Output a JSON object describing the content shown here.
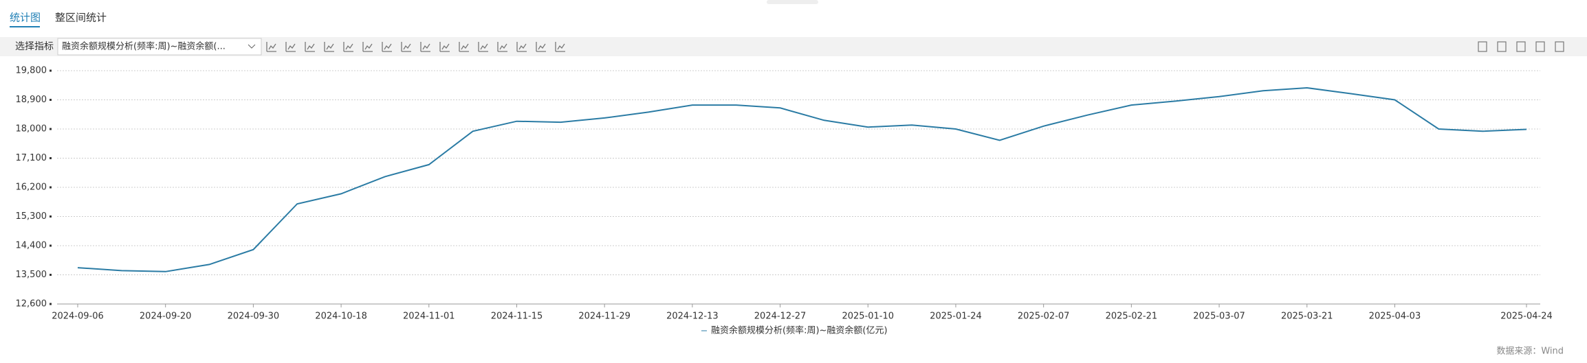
{
  "tabs": [
    "统计图",
    "整区间统计"
  ],
  "toolbar": {
    "label": "选择指标",
    "selector": "融资余额规模分析(频率:周)~融资余额(..."
  },
  "chart_data": {
    "type": "line",
    "categories": [
      "2024-09-06",
      null,
      "2024-09-20",
      null,
      "2024-09-30",
      null,
      "2024-10-18",
      null,
      "2024-11-01",
      null,
      "2024-11-15",
      null,
      "2024-11-29",
      null,
      "2024-12-13",
      null,
      "2024-12-27",
      null,
      "2025-01-10",
      null,
      "2025-01-24",
      null,
      "2025-02-07",
      null,
      "2025-02-21",
      null,
      "2025-03-07",
      null,
      "2025-03-21",
      null,
      "2025-04-03",
      null,
      null,
      "2025-04-24"
    ],
    "series": [
      {
        "name": "融资余额规模分析(频率:周)~融资余额(亿元)",
        "color": "#2a7ba4",
        "values": [
          13720,
          13630,
          13600,
          13820,
          14280,
          15690,
          16000,
          16530,
          16900,
          17930,
          18240,
          18210,
          18340,
          18520,
          18740,
          18740,
          18650,
          18270,
          18060,
          18120,
          18000,
          17650,
          18090,
          18430,
          18740,
          18860,
          19000,
          19180,
          19270,
          19090,
          18900,
          18000,
          17930,
          17990
        ]
      }
    ],
    "ylim": [
      12600,
      19800
    ],
    "yticks": [
      {
        "value": 12600,
        "label": "12,600"
      },
      {
        "value": 13500,
        "label": "13,500"
      },
      {
        "value": 14400,
        "label": "14,400"
      },
      {
        "value": 15300,
        "label": "15,300"
      },
      {
        "value": 16200,
        "label": "16,200"
      },
      {
        "value": 17100,
        "label": "17,100"
      },
      {
        "value": 18000,
        "label": "18,000"
      },
      {
        "value": 18900,
        "label": "18,900"
      },
      {
        "value": 19800,
        "label": "19,800"
      }
    ],
    "grid": true
  },
  "source": "数据来源：Wind"
}
